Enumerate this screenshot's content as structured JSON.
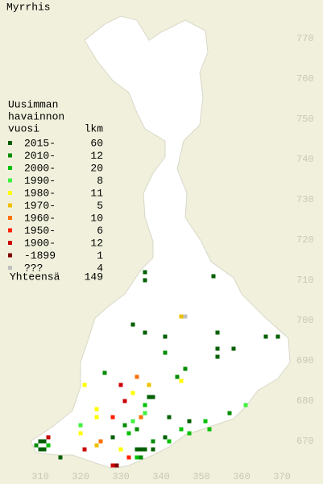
{
  "title": "Myrrhis",
  "legend": {
    "title_lines": [
      "Uusimman",
      "havainnon",
      "vuosi"
    ],
    "count_header": "lkm",
    "rows": [
      {
        "label": "2015-",
        "count": 60,
        "color": "#006000"
      },
      {
        "label": "2010-",
        "count": 12,
        "color": "#008c00"
      },
      {
        "label": "2000-",
        "count": 20,
        "color": "#00c000"
      },
      {
        "label": "1990-",
        "count": 8,
        "color": "#40f040"
      },
      {
        "label": "1980-",
        "count": 11,
        "color": "#ffff00"
      },
      {
        "label": "1970-",
        "count": 5,
        "color": "#f0c000"
      },
      {
        "label": "1960-",
        "count": 10,
        "color": "#ff7000"
      },
      {
        "label": "1950-",
        "count": 6,
        "color": "#ff2000"
      },
      {
        "label": "1900-",
        "count": 12,
        "color": "#c80000"
      },
      {
        "label": "-1899",
        "count": 1,
        "color": "#800000"
      },
      {
        "label": "???",
        "count": 4,
        "color": "#c0c0c0"
      }
    ],
    "total_label": "Yhteensä",
    "total": 149
  },
  "yticks": [
    770,
    760,
    750,
    740,
    730,
    720,
    710,
    700,
    690,
    680,
    670
  ],
  "xticks": [
    310,
    320,
    330,
    340,
    350,
    360,
    370
  ],
  "records": [
    [
      336,
      712,
      0
    ],
    [
      336,
      710,
      0
    ],
    [
      353,
      711,
      0
    ],
    [
      345,
      701,
      5
    ],
    [
      346,
      701,
      10
    ],
    [
      333,
      699,
      0
    ],
    [
      336,
      697,
      0
    ],
    [
      341,
      696,
      0
    ],
    [
      354,
      697,
      0
    ],
    [
      366,
      696,
      0
    ],
    [
      369,
      696,
      0
    ],
    [
      354,
      693,
      0
    ],
    [
      354,
      691,
      0
    ],
    [
      358,
      693,
      0
    ],
    [
      341,
      692,
      1
    ],
    [
      346,
      688,
      1
    ],
    [
      326,
      687,
      1
    ],
    [
      345,
      685,
      4
    ],
    [
      344,
      686,
      1
    ],
    [
      334,
      686,
      6
    ],
    [
      330,
      684,
      8
    ],
    [
      337,
      684,
      5
    ],
    [
      333,
      682,
      4
    ],
    [
      321,
      684,
      4
    ],
    [
      337,
      681,
      0
    ],
    [
      338,
      681,
      0
    ],
    [
      331,
      680,
      8
    ],
    [
      336,
      679,
      2
    ],
    [
      336,
      677,
      3
    ],
    [
      335,
      676,
      6
    ],
    [
      342,
      676,
      0
    ],
    [
      347,
      675,
      0
    ],
    [
      351,
      675,
      2
    ],
    [
      361,
      679,
      3
    ],
    [
      357,
      677,
      1
    ],
    [
      324,
      678,
      4
    ],
    [
      324,
      676,
      4
    ],
    [
      328,
      676,
      7
    ],
    [
      333,
      675,
      3
    ],
    [
      334,
      673,
      1
    ],
    [
      332,
      672,
      2
    ],
    [
      320,
      674,
      3
    ],
    [
      320,
      672,
      4
    ],
    [
      321,
      668,
      8
    ],
    [
      325,
      670,
      6
    ],
    [
      324,
      669,
      5
    ],
    [
      330,
      668,
      4
    ],
    [
      334,
      668,
      0
    ],
    [
      335,
      668,
      0
    ],
    [
      336,
      668,
      0
    ],
    [
      338,
      668,
      0
    ],
    [
      335,
      666,
      1
    ],
    [
      334,
      666,
      2
    ],
    [
      338,
      670,
      1
    ],
    [
      341,
      671,
      0
    ],
    [
      342,
      670,
      2
    ],
    [
      328,
      664,
      8
    ],
    [
      329,
      664,
      9
    ],
    [
      332,
      666,
      7
    ],
    [
      310,
      670,
      0
    ],
    [
      311,
      670,
      0
    ],
    [
      309,
      669,
      1
    ],
    [
      312,
      669,
      2
    ],
    [
      310,
      668,
      0
    ],
    [
      311,
      668,
      0
    ],
    [
      315,
      666,
      0
    ],
    [
      312,
      671,
      8
    ],
    [
      345,
      673,
      2
    ],
    [
      347,
      672,
      2
    ],
    [
      352,
      673,
      2
    ],
    [
      328,
      671,
      0
    ],
    [
      331,
      674,
      1
    ]
  ]
}
